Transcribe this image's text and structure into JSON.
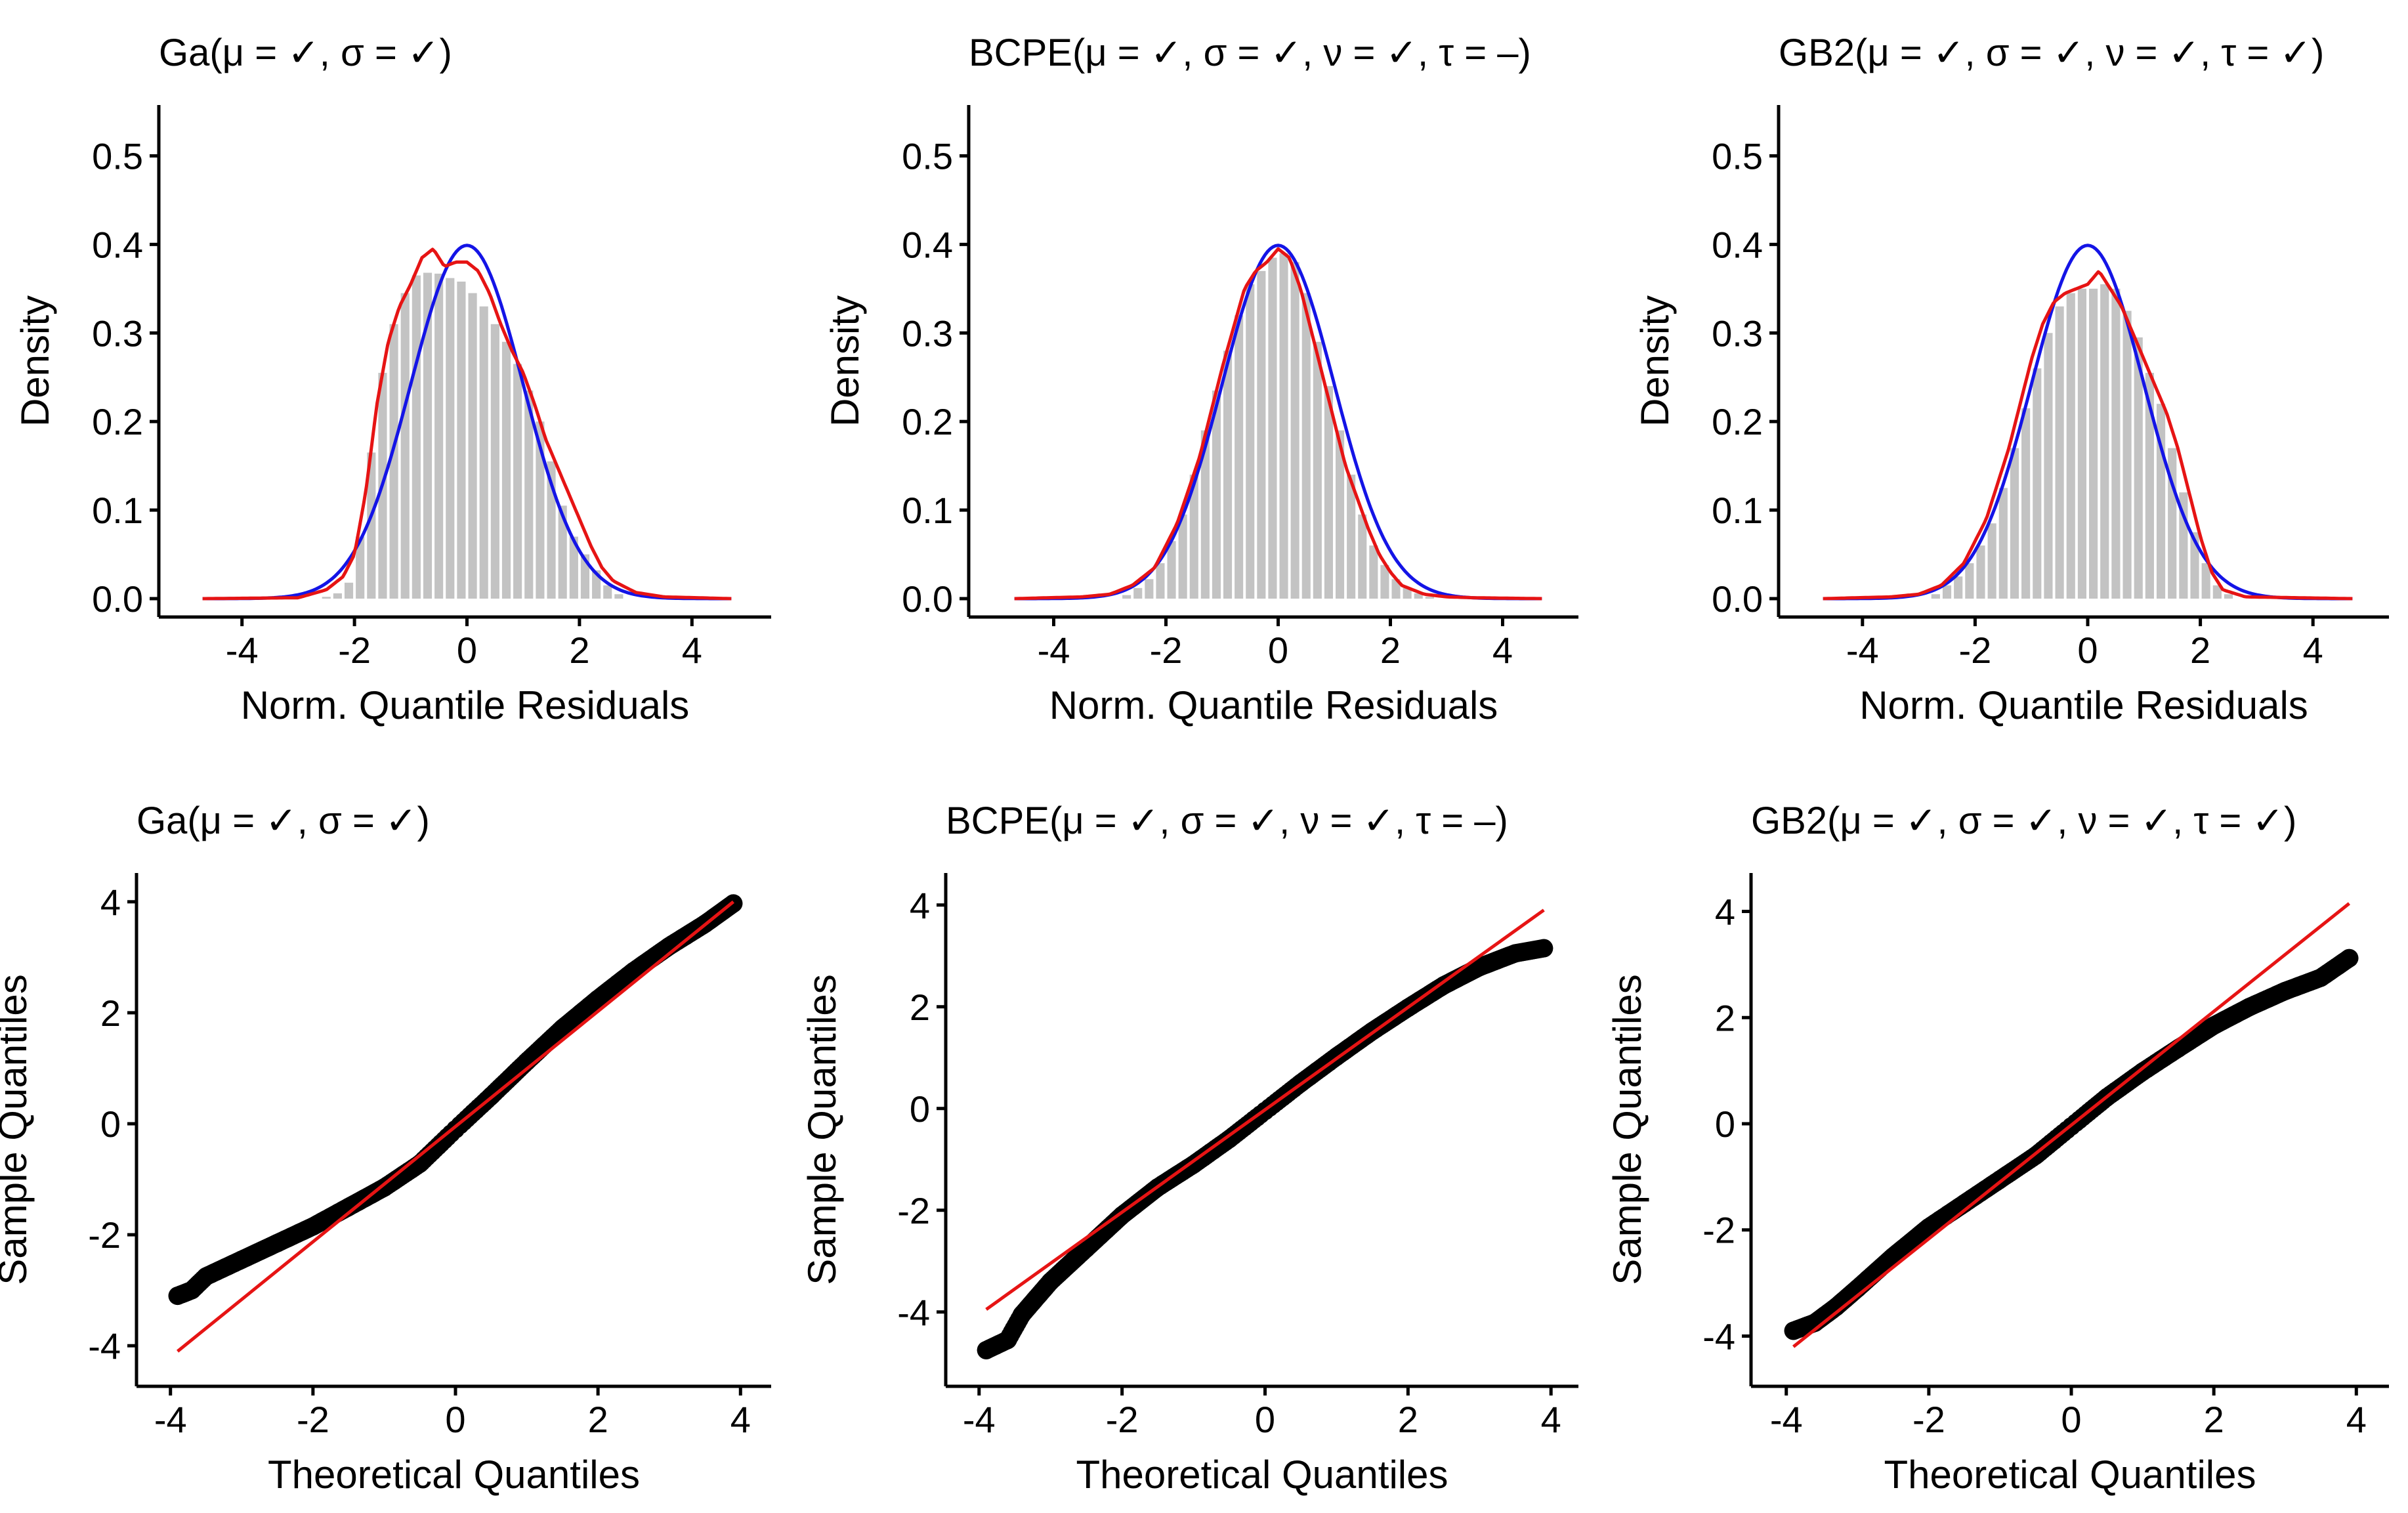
{
  "figure": {
    "layout": "2 rows x 3 columns",
    "colors": {
      "histogram_bar": "#c3c3c3",
      "normal_density": "#1414e6",
      "empirical_density": "#e61414",
      "qq_points": "#000000",
      "qq_line": "#e61414",
      "axis": "#000000"
    }
  },
  "chart_data": [
    {
      "panel": "density-ga",
      "type": "bar",
      "title": "Ga(μ = ✓, σ = ✓)",
      "xlabel": "Norm. Quantile Residuals",
      "ylabel": "Density",
      "xlim": [
        -5,
        5
      ],
      "ylim": [
        0,
        0.55
      ],
      "xticks": [
        -4,
        -2,
        0,
        2,
        4
      ],
      "yticks": [
        0.0,
        0.1,
        0.2,
        0.3,
        0.4,
        0.5
      ],
      "yticklabels": [
        "0.0",
        "0.1",
        "0.2",
        "0.3",
        "0.4",
        "0.5"
      ],
      "bin_width": 0.2,
      "bins": {
        "x": [
          -2.5,
          -2.3,
          -2.1,
          -1.9,
          -1.7,
          -1.5,
          -1.3,
          -1.1,
          -0.9,
          -0.7,
          -0.5,
          -0.3,
          -0.1,
          0.1,
          0.3,
          0.5,
          0.7,
          0.9,
          1.1,
          1.3,
          1.5,
          1.7,
          1.9,
          2.1,
          2.3,
          2.5,
          2.7
        ],
        "density": [
          0.002,
          0.006,
          0.018,
          0.07,
          0.165,
          0.255,
          0.31,
          0.345,
          0.365,
          0.368,
          0.367,
          0.362,
          0.358,
          0.345,
          0.33,
          0.31,
          0.29,
          0.265,
          0.235,
          0.2,
          0.155,
          0.105,
          0.07,
          0.05,
          0.032,
          0.015,
          0.005
        ]
      },
      "series": [
        {
          "name": "normal density",
          "style": "blue-line"
        },
        {
          "name": "kernel density",
          "style": "red-line",
          "x": [
            -4.7,
            -3,
            -2.5,
            -2.2,
            -2,
            -1.8,
            -1.6,
            -1.4,
            -1.2,
            -1,
            -0.8,
            -0.6,
            -0.5,
            -0.4,
            -0.2,
            0,
            0.2,
            0.4,
            0.6,
            0.8,
            1,
            1.2,
            1.4,
            1.6,
            1.8,
            2,
            2.2,
            2.4,
            2.6,
            3,
            3.5,
            4.7
          ],
          "y": [
            0,
            0.001,
            0.01,
            0.025,
            0.05,
            0.12,
            0.22,
            0.29,
            0.33,
            0.355,
            0.385,
            0.395,
            0.385,
            0.375,
            0.38,
            0.38,
            0.37,
            0.345,
            0.31,
            0.28,
            0.255,
            0.22,
            0.18,
            0.15,
            0.12,
            0.09,
            0.06,
            0.035,
            0.02,
            0.007,
            0.002,
            0
          ]
        }
      ]
    },
    {
      "panel": "density-bcpe",
      "type": "bar",
      "title": "BCPE(μ = ✓, σ = ✓, ν = ✓, τ = –)",
      "xlabel": "Norm. Quantile Residuals",
      "ylabel": "Density",
      "xlim": [
        -5,
        5
      ],
      "ylim": [
        0,
        0.55
      ],
      "xticks": [
        -4,
        -2,
        0,
        2,
        4
      ],
      "yticks": [
        0.0,
        0.1,
        0.2,
        0.3,
        0.4,
        0.5
      ],
      "yticklabels": [
        "0.0",
        "0.1",
        "0.2",
        "0.3",
        "0.4",
        "0.5"
      ],
      "bin_width": 0.2,
      "bins": {
        "x": [
          -2.7,
          -2.5,
          -2.3,
          -2.1,
          -1.9,
          -1.7,
          -1.5,
          -1.3,
          -1.1,
          -0.9,
          -0.7,
          -0.5,
          -0.3,
          -0.1,
          0.1,
          0.3,
          0.5,
          0.7,
          0.9,
          1.1,
          1.3,
          1.5,
          1.7,
          1.9,
          2.1,
          2.3,
          2.5,
          2.7
        ],
        "density": [
          0.004,
          0.012,
          0.022,
          0.04,
          0.065,
          0.095,
          0.14,
          0.19,
          0.235,
          0.28,
          0.32,
          0.355,
          0.37,
          0.385,
          0.39,
          0.38,
          0.345,
          0.29,
          0.24,
          0.19,
          0.14,
          0.095,
          0.06,
          0.038,
          0.022,
          0.012,
          0.006,
          0.002
        ]
      },
      "series": [
        {
          "name": "normal density",
          "style": "blue-line"
        },
        {
          "name": "kernel density",
          "style": "red-line",
          "x": [
            -4.7,
            -3.5,
            -3,
            -2.6,
            -2.2,
            -1.8,
            -1.4,
            -1.2,
            -1,
            -0.8,
            -0.6,
            -0.4,
            -0.2,
            0,
            0.2,
            0.4,
            0.6,
            0.8,
            1,
            1.2,
            1.4,
            1.6,
            1.8,
            2,
            2.2,
            2.6,
            3,
            3.5,
            4.7
          ],
          "y": [
            0,
            0.002,
            0.005,
            0.015,
            0.035,
            0.085,
            0.16,
            0.21,
            0.26,
            0.305,
            0.35,
            0.37,
            0.38,
            0.395,
            0.385,
            0.35,
            0.3,
            0.25,
            0.2,
            0.15,
            0.115,
            0.08,
            0.05,
            0.03,
            0.015,
            0.005,
            0.002,
            0.001,
            0
          ]
        }
      ]
    },
    {
      "panel": "density-gb2",
      "type": "bar",
      "title": "GB2(μ = ✓, σ = ✓, ν = ✓, τ = ✓)",
      "xlabel": "Norm. Quantile Residuals",
      "ylabel": "Density",
      "xlim": [
        -5,
        5
      ],
      "ylim": [
        0,
        0.55
      ],
      "xticks": [
        -4,
        -2,
        0,
        2,
        4
      ],
      "yticks": [
        0.0,
        0.1,
        0.2,
        0.3,
        0.4,
        0.5
      ],
      "yticklabels": [
        "0.0",
        "0.1",
        "0.2",
        "0.3",
        "0.4",
        "0.5"
      ],
      "bin_width": 0.2,
      "bins": {
        "x": [
          -2.7,
          -2.5,
          -2.3,
          -2.1,
          -1.9,
          -1.7,
          -1.5,
          -1.3,
          -1.1,
          -0.9,
          -0.7,
          -0.5,
          -0.3,
          -0.1,
          0.1,
          0.3,
          0.5,
          0.7,
          0.9,
          1.1,
          1.3,
          1.5,
          1.7,
          1.9,
          2.1,
          2.3,
          2.5
        ],
        "density": [
          0.005,
          0.015,
          0.025,
          0.04,
          0.06,
          0.085,
          0.125,
          0.17,
          0.215,
          0.26,
          0.3,
          0.33,
          0.345,
          0.35,
          0.35,
          0.355,
          0.35,
          0.325,
          0.295,
          0.255,
          0.22,
          0.17,
          0.12,
          0.075,
          0.04,
          0.015,
          0.005
        ]
      },
      "series": [
        {
          "name": "normal density",
          "style": "blue-line"
        },
        {
          "name": "kernel density",
          "style": "red-line",
          "x": [
            -4.7,
            -3.5,
            -3,
            -2.6,
            -2.2,
            -1.8,
            -1.4,
            -1.2,
            -1,
            -0.8,
            -0.6,
            -0.4,
            -0.2,
            0,
            0.2,
            0.4,
            0.6,
            0.8,
            1,
            1.2,
            1.4,
            1.6,
            1.8,
            2,
            2.2,
            2.4,
            2.8,
            4.7
          ],
          "y": [
            0,
            0.002,
            0.005,
            0.015,
            0.04,
            0.09,
            0.17,
            0.22,
            0.27,
            0.31,
            0.335,
            0.345,
            0.35,
            0.355,
            0.37,
            0.35,
            0.33,
            0.3,
            0.27,
            0.24,
            0.21,
            0.17,
            0.12,
            0.07,
            0.03,
            0.01,
            0.002,
            0
          ]
        }
      ]
    },
    {
      "panel": "qq-ga",
      "type": "scatter",
      "title": "Ga(μ = ✓, σ = ✓)",
      "xlabel": "Theoretical Quantiles",
      "ylabel": "Sample Quantiles",
      "xlim": [
        -4.2,
        4.2
      ],
      "ylim": [
        -4.4,
        4.4
      ],
      "xticks": [
        -4,
        -2,
        0,
        2,
        4
      ],
      "yticks": [
        -4,
        -2,
        0,
        2,
        4
      ],
      "xticklabels": [
        "-4",
        "-2",
        "0",
        "2",
        "4"
      ],
      "yticklabels": [
        "-4",
        "-2",
        "0",
        "2",
        "4"
      ],
      "sample_curve": {
        "x": [
          -3.9,
          -3.7,
          -3.5,
          -3,
          -2.5,
          -2,
          -1.5,
          -1,
          -0.5,
          0,
          0.5,
          1,
          1.5,
          2,
          2.5,
          3,
          3.5,
          3.9
        ],
        "y": [
          -3.1,
          -3.0,
          -2.75,
          -2.45,
          -2.15,
          -1.85,
          -1.5,
          -1.15,
          -0.72,
          -0.1,
          0.5,
          1.12,
          1.72,
          2.25,
          2.75,
          3.2,
          3.6,
          3.97
        ]
      },
      "reference_line": {
        "x": [
          -3.9,
          3.9
        ],
        "y": [
          -4.1,
          4.0
        ]
      }
    },
    {
      "panel": "qq-bcpe",
      "type": "scatter",
      "title": "BCPE(μ = ✓, σ = ✓, ν = ✓, τ = –)",
      "xlabel": "Theoretical Quantiles",
      "ylabel": "Sample Quantiles",
      "xlim": [
        -4.2,
        4.2
      ],
      "ylim": [
        -5.1,
        4.5
      ],
      "xticks": [
        -4,
        -2,
        0,
        2,
        4
      ],
      "yticks": [
        -4,
        -2,
        0,
        2,
        4
      ],
      "xticklabels": [
        "-4",
        "-2",
        "0",
        "2",
        "4"
      ],
      "yticklabels": [
        "-4",
        "-2",
        "0",
        "2",
        "4"
      ],
      "sample_curve": {
        "x": [
          -3.9,
          -3.6,
          -3.4,
          -3,
          -2.5,
          -2,
          -1.5,
          -1,
          -0.5,
          0,
          0.5,
          1,
          1.5,
          2,
          2.5,
          3,
          3.5,
          3.9
        ],
        "y": [
          -4.75,
          -4.55,
          -4.05,
          -3.4,
          -2.75,
          -2.1,
          -1.55,
          -1.1,
          -0.6,
          -0.05,
          0.5,
          1.02,
          1.52,
          1.98,
          2.42,
          2.78,
          3.05,
          3.15
        ]
      },
      "reference_line": {
        "x": [
          -3.9,
          3.9
        ],
        "y": [
          -3.95,
          3.9
        ]
      }
    },
    {
      "panel": "qq-gb2",
      "type": "scatter",
      "title": "GB2(μ = ✓, σ = ✓, ν = ✓, τ = ✓)",
      "xlabel": "Theoretical Quantiles",
      "ylabel": "Sample Quantiles",
      "xlim": [
        -4.2,
        4.2
      ],
      "ylim": [
        -4.6,
        4.6
      ],
      "xticks": [
        -4,
        -2,
        0,
        2,
        4
      ],
      "yticks": [
        -4,
        -2,
        0,
        2,
        4
      ],
      "xticklabels": [
        "-4",
        "-2",
        "0",
        "2",
        "4"
      ],
      "yticklabels": [
        "-4",
        "-2",
        "0",
        "2",
        "4"
      ],
      "sample_curve": {
        "x": [
          -3.9,
          -3.6,
          -3.3,
          -3,
          -2.5,
          -2,
          -1.5,
          -1,
          -0.5,
          0,
          0.5,
          1,
          1.5,
          2,
          2.5,
          3,
          3.5,
          3.9
        ],
        "y": [
          -3.9,
          -3.75,
          -3.45,
          -3.1,
          -2.5,
          -1.95,
          -1.5,
          -1.05,
          -0.6,
          -0.05,
          0.5,
          0.98,
          1.42,
          1.85,
          2.2,
          2.5,
          2.75,
          3.12
        ]
      },
      "reference_line": {
        "x": [
          -3.9,
          3.9
        ],
        "y": [
          -4.2,
          4.15
        ]
      }
    }
  ]
}
